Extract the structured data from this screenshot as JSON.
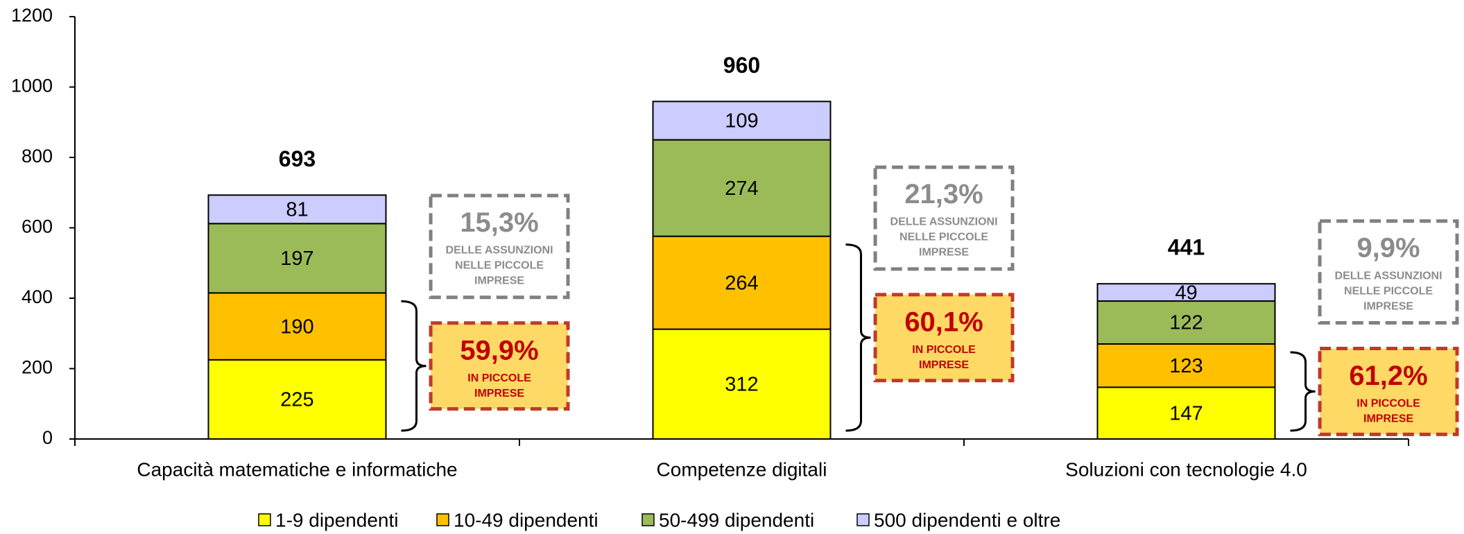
{
  "chart_data": {
    "type": "stacked_bar",
    "categories": [
      "Capacità matematiche e informatiche",
      "Competenze digitali",
      "Soluzioni con tecnologie 4.0"
    ],
    "series": [
      {
        "name": "1-9 dipendenti",
        "color": "#ffff00",
        "values": [
          225,
          312,
          147
        ]
      },
      {
        "name": "10-49 dipendenti",
        "color": "#ffc000",
        "values": [
          190,
          264,
          123
        ]
      },
      {
        "name": "50-499 dipendenti",
        "color": "#9bbb59",
        "values": [
          197,
          274,
          122
        ]
      },
      {
        "name": "500 dipendenti e oltre",
        "color": "#ccccff",
        "values": [
          81,
          109,
          49
        ]
      }
    ],
    "totals": [
      693,
      960,
      441
    ],
    "annotations": [
      {
        "large_share": "15,3%",
        "large_text": [
          "DELLE ASSUNZIONI",
          "NELLE  PICCOLE",
          "IMPRESE"
        ],
        "small_share": "59,9%",
        "small_text": [
          "IN PICCOLE",
          "IMPRESE"
        ]
      },
      {
        "large_share": "21,3%",
        "large_text": [
          "DELLE ASSUNZIONI",
          "NELLE  PICCOLE",
          "IMPRESE"
        ],
        "small_share": "60,1%",
        "small_text": [
          "IN PICCOLE",
          "IMPRESE"
        ]
      },
      {
        "large_share": "9,9%",
        "large_text": [
          "DELLE ASSUNZIONI",
          "NELLE  PICCOLE",
          "IMPRESE"
        ],
        "small_share": "61,2%",
        "small_text": [
          "IN PICCOLE",
          "IMPRESE"
        ]
      }
    ],
    "ylim": [
      0,
      1200
    ],
    "yticks": [
      0,
      200,
      400,
      600,
      800,
      1000,
      1200
    ],
    "legend": "bottom"
  }
}
